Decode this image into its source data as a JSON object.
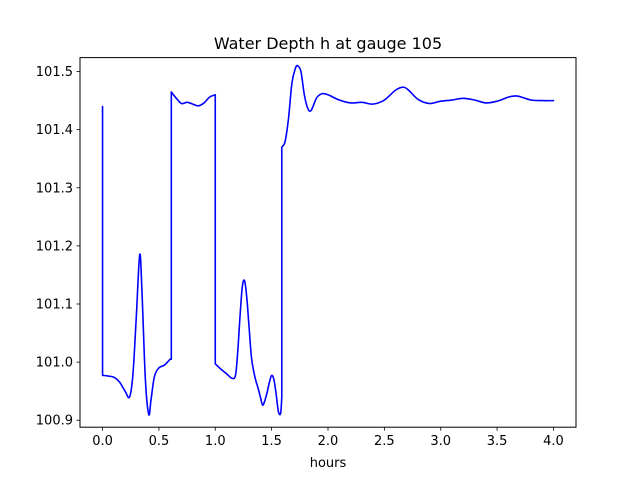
{
  "chart_data": {
    "type": "line",
    "title": "Water Depth h at gauge 105",
    "xlabel": "hours",
    "ylabel": "",
    "xlim": [
      -0.2,
      4.2
    ],
    "ylim": [
      100.888,
      101.524
    ],
    "xticks": [
      0.0,
      0.5,
      1.0,
      1.5,
      2.0,
      2.5,
      3.0,
      3.5,
      4.0
    ],
    "xtick_labels": [
      "0.0",
      "0.5",
      "1.0",
      "1.5",
      "2.0",
      "2.5",
      "3.0",
      "3.5",
      "4.0"
    ],
    "yticks": [
      100.9,
      101.0,
      101.1,
      101.2,
      101.3,
      101.4,
      101.5
    ],
    "ytick_labels": [
      "100.9",
      "101.0",
      "101.1",
      "101.2",
      "101.3",
      "101.4",
      "101.5"
    ],
    "grid": false,
    "series": [
      {
        "color": "#0000ff",
        "x": [
          0.0,
          0.0,
          0.01,
          0.05,
          0.1,
          0.15,
          0.2,
          0.24,
          0.27,
          0.3,
          0.33,
          0.35,
          0.38,
          0.41,
          0.43,
          0.46,
          0.5,
          0.55,
          0.6,
          0.61,
          0.61,
          0.65,
          0.7,
          0.75,
          0.8,
          0.85,
          0.9,
          0.95,
          1.0,
          1.0,
          1.05,
          1.1,
          1.15,
          1.18,
          1.2,
          1.22,
          1.24,
          1.26,
          1.28,
          1.3,
          1.32,
          1.34,
          1.36,
          1.38,
          1.4,
          1.42,
          1.44,
          1.46,
          1.48,
          1.5,
          1.52,
          1.54,
          1.56,
          1.58,
          1.59,
          1.59,
          1.62,
          1.65,
          1.68,
          1.71,
          1.73,
          1.76,
          1.79,
          1.82,
          1.85,
          1.9,
          1.95,
          2.0,
          2.1,
          2.2,
          2.3,
          2.4,
          2.5,
          2.6,
          2.67,
          2.72,
          2.8,
          2.9,
          3.0,
          3.1,
          3.2,
          3.3,
          3.4,
          3.5,
          3.6,
          3.66,
          3.7,
          3.8,
          3.9,
          4.0
        ],
        "y": [
          101.44,
          100.977,
          100.977,
          100.976,
          100.974,
          100.966,
          100.95,
          100.94,
          100.98,
          101.08,
          101.185,
          101.12,
          100.97,
          100.91,
          100.935,
          100.975,
          100.99,
          100.995,
          101.005,
          101.005,
          101.465,
          101.455,
          101.445,
          101.447,
          101.444,
          101.441,
          101.446,
          101.456,
          101.46,
          100.997,
          100.988,
          100.98,
          100.972,
          100.978,
          101.02,
          101.08,
          101.13,
          101.14,
          101.11,
          101.06,
          101.01,
          100.985,
          100.968,
          100.955,
          100.94,
          100.926,
          100.934,
          100.948,
          100.965,
          100.977,
          100.97,
          100.945,
          100.915,
          100.912,
          100.94,
          101.37,
          101.38,
          101.42,
          101.48,
          101.505,
          101.51,
          101.5,
          101.46,
          101.437,
          101.433,
          101.455,
          101.462,
          101.46,
          101.451,
          101.446,
          101.447,
          101.444,
          101.451,
          101.468,
          101.473,
          101.467,
          101.452,
          101.445,
          101.449,
          101.451,
          101.454,
          101.451,
          101.446,
          101.449,
          101.456,
          101.458,
          101.457,
          101.451,
          101.45,
          101.45
        ]
      }
    ]
  }
}
